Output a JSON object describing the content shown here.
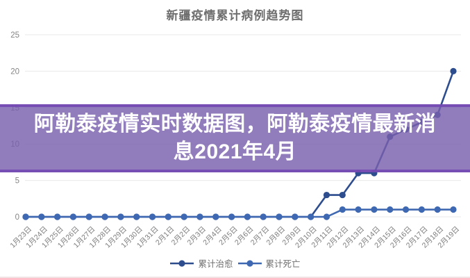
{
  "overlay_banner": {
    "text": "阿勒泰疫情实时数据图，阿勒泰疫情最新消息2021年4月",
    "background_color": "#7b5fad",
    "text_color": "#ffffff"
  },
  "chart_data": {
    "type": "line",
    "title": "新疆疫情累计病例趋势图",
    "categories": [
      "1月23日",
      "1月24日",
      "1月25日",
      "1月26日",
      "1月27日",
      "1月28日",
      "1月29日",
      "1月30日",
      "1月31日",
      "2月1日",
      "2月2日",
      "2月3日",
      "2月4日",
      "2月5日",
      "2月6日",
      "2月7日",
      "2月8日",
      "2月9日",
      "2月10日",
      "2月11日",
      "2月12日",
      "2月13日",
      "2月14日",
      "2月15日",
      "2月16日",
      "2月17日",
      "2月18日",
      "2月19日"
    ],
    "series": [
      {
        "name": "累计治愈",
        "color": "#2d4d8e",
        "values": [
          0,
          0,
          0,
          0,
          0,
          0,
          0,
          0,
          0,
          0,
          0,
          0,
          0,
          0,
          0,
          0,
          0,
          0,
          0,
          3,
          3,
          6,
          6,
          11,
          12,
          13,
          14,
          20
        ]
      },
      {
        "name": "累计死亡",
        "color": "#3e68b1",
        "values": [
          0,
          0,
          0,
          0,
          0,
          0,
          0,
          0,
          0,
          0,
          0,
          0,
          0,
          0,
          0,
          0,
          0,
          0,
          0,
          0,
          1,
          1,
          1,
          1,
          1,
          1,
          1,
          1
        ]
      }
    ],
    "ylim": [
      0,
      25
    ],
    "yticks": [
      0,
      5,
      10,
      15,
      20,
      25
    ],
    "grid": true,
    "grid_color": "#e8e8e8",
    "axis_label_color": "#858585",
    "legend_position": "bottom"
  }
}
